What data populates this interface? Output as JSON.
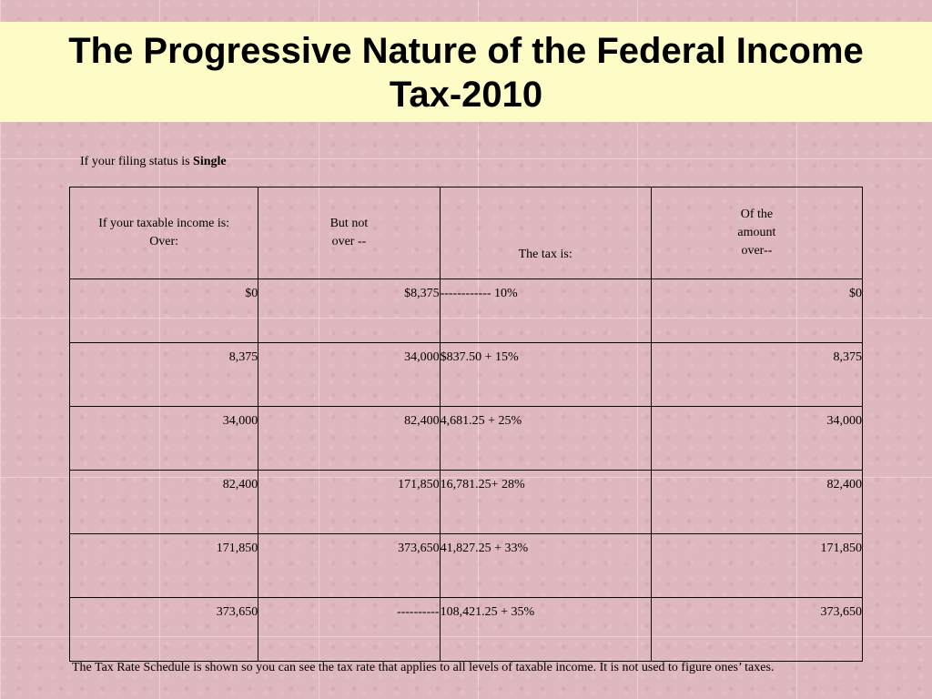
{
  "title": {
    "line1": "The Progressive Nature of the Federal Income",
    "line2": "Tax-2010"
  },
  "filing_status": {
    "prefix": "If your filing status is ",
    "value": "Single"
  },
  "table": {
    "headers": {
      "col1_line1": "If your taxable income is:",
      "col1_line2": "Over:",
      "col2_line1": "But not",
      "col2_line2": "over --",
      "col3": "The tax is:",
      "col4_line1": "Of the",
      "col4_line2": "amount",
      "col4_line3": "over--"
    },
    "rows": [
      {
        "over": "$0",
        "not_over": "$8,375",
        "tax": "------------ 10%",
        "of_amount_over": "$0"
      },
      {
        "over": "8,375",
        "not_over": "34,000",
        "tax": "$837.50 + 15%",
        "of_amount_over": "8,375"
      },
      {
        "over": "34,000",
        "not_over": "82,400",
        "tax": "4,681.25 + 25%",
        "of_amount_over": "34,000"
      },
      {
        "over": "82,400",
        "not_over": "171,850",
        "tax": "16,781.25+ 28%",
        "of_amount_over": "82,400"
      },
      {
        "over": "171,850",
        "not_over": "373,650",
        "tax": "41,827.25 + 33%",
        "of_amount_over": "171,850"
      },
      {
        "over": "373,650",
        "not_over": "----------",
        "tax": "108,421.25 + 35%",
        "of_amount_over": "373,650"
      }
    ]
  },
  "footnote": "The Tax Rate Schedule is shown so you can see the tax rate that applies to all levels of taxable income.  It is not used to figure ones’ taxes.",
  "colors": {
    "background": "#ddb3bc",
    "title_band": "#fdfcc7"
  }
}
